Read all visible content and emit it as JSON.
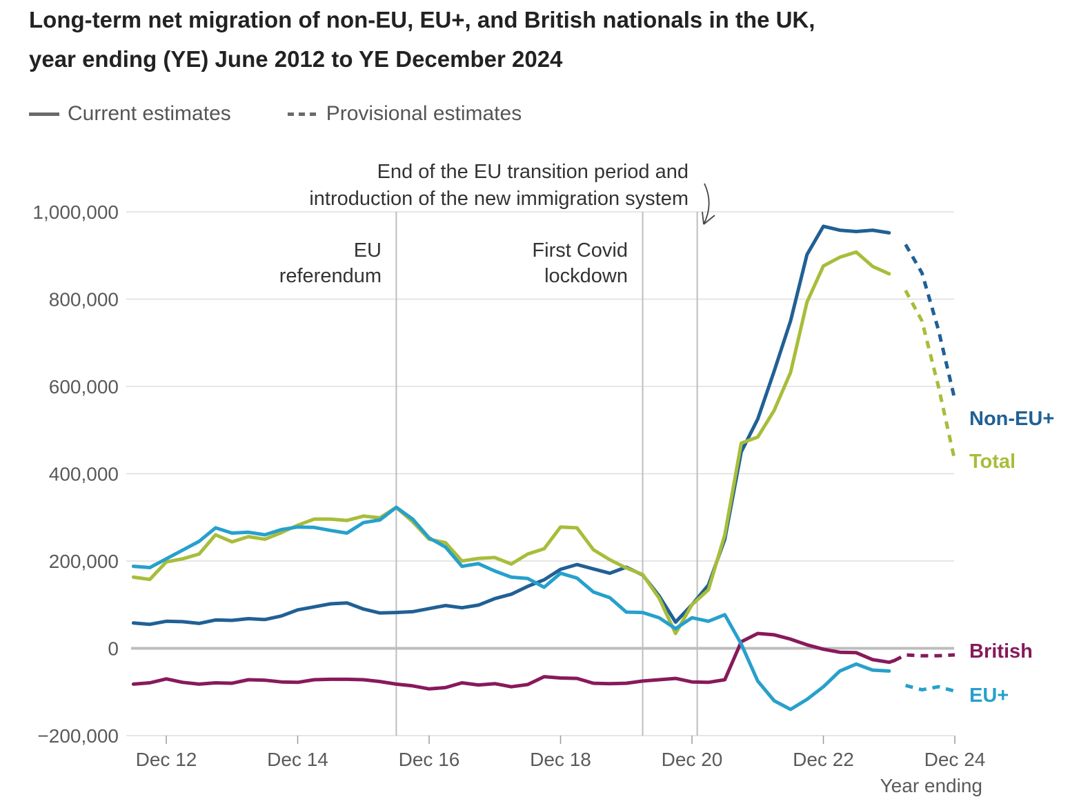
{
  "title_line1": "Long-term net migration of non-EU, EU+, and British nationals in the UK,",
  "title_line2": "year ending (YE) June 2012 to YE December 2024",
  "legend": {
    "current": "Current estimates",
    "provisional": "Provisional estimates"
  },
  "chart_data": {
    "type": "line",
    "title": "Long-term net migration of non-EU, EU+, and British nationals in the UK, year ending (YE) June 2012 to YE December 2024",
    "xlabel": "Year ending",
    "ylabel": "",
    "xlim": [
      2011.45,
      2024.0
    ],
    "ylim": [
      -200000,
      1000000
    ],
    "x_ticks": [
      {
        "x": 2012,
        "label": "Dec 12"
      },
      {
        "x": 2014,
        "label": "Dec 14"
      },
      {
        "x": 2016,
        "label": "Dec 16"
      },
      {
        "x": 2018,
        "label": "Dec 18"
      },
      {
        "x": 2020,
        "label": "Dec 20"
      },
      {
        "x": 2022,
        "label": "Dec 22"
      },
      {
        "x": 2024,
        "label": "Dec 24"
      }
    ],
    "y_ticks": [
      {
        "y": 1000000,
        "label": "1,000,000"
      },
      {
        "y": 800000,
        "label": "800,000"
      },
      {
        "y": 600000,
        "label": "600,000"
      },
      {
        "y": 400000,
        "label": "400,000"
      },
      {
        "y": 200000,
        "label": "200,000"
      },
      {
        "y": 0,
        "label": "0"
      },
      {
        "y": -200000,
        "label": "−200,000"
      }
    ],
    "grid": true,
    "colors": {
      "Non-EU+": "#206095",
      "Total": "#a8bd3a",
      "British": "#871a5b",
      "EU+": "#27a0cc",
      "reference": "#bdbdbd",
      "zero": "#bdbdbd"
    },
    "annotations": [
      {
        "x": 2015.5,
        "lines": [
          "EU",
          "referendum"
        ]
      },
      {
        "x": 2019.25,
        "lines": [
          "First Covid",
          "lockdown"
        ]
      },
      {
        "x": 2020.08,
        "lines": [
          "End of the EU transition period and",
          "introduction of the new immigration system"
        ]
      }
    ],
    "provisional_from_x": 2023.08,
    "series": [
      {
        "name": "Non-EU+",
        "label": "Non-EU+",
        "points": [
          [
            2011.5,
            58000
          ],
          [
            2011.75,
            55000
          ],
          [
            2012.0,
            62000
          ],
          [
            2012.25,
            61000
          ],
          [
            2012.5,
            57000
          ],
          [
            2012.75,
            65000
          ],
          [
            2013.0,
            64000
          ],
          [
            2013.25,
            68000
          ],
          [
            2013.5,
            66000
          ],
          [
            2013.75,
            74000
          ],
          [
            2014.0,
            88000
          ],
          [
            2014.25,
            95000
          ],
          [
            2014.5,
            102000
          ],
          [
            2014.75,
            104000
          ],
          [
            2015.0,
            90000
          ],
          [
            2015.25,
            81000
          ],
          [
            2015.5,
            82000
          ],
          [
            2015.75,
            84000
          ],
          [
            2016.0,
            91000
          ],
          [
            2016.25,
            98000
          ],
          [
            2016.5,
            93000
          ],
          [
            2016.75,
            99000
          ],
          [
            2017.0,
            114000
          ],
          [
            2017.25,
            124000
          ],
          [
            2017.5,
            142000
          ],
          [
            2017.75,
            157000
          ],
          [
            2018.0,
            181000
          ],
          [
            2018.25,
            192000
          ],
          [
            2018.5,
            182000
          ],
          [
            2018.75,
            172000
          ],
          [
            2019.0,
            186000
          ],
          [
            2019.25,
            168000
          ],
          [
            2019.5,
            120000
          ],
          [
            2019.75,
            60000
          ],
          [
            2020.0,
            100000
          ],
          [
            2020.25,
            145000
          ],
          [
            2020.5,
            250000
          ],
          [
            2020.75,
            450000
          ],
          [
            2021.0,
            525000
          ],
          [
            2021.25,
            635000
          ],
          [
            2021.5,
            750000
          ],
          [
            2021.75,
            902000
          ],
          [
            2022.0,
            967000
          ],
          [
            2022.25,
            958000
          ],
          [
            2022.5,
            955000
          ],
          [
            2022.75,
            958000
          ],
          [
            2023.0,
            952000
          ],
          [
            2023.25,
            925000
          ],
          [
            2023.5,
            860000
          ],
          [
            2023.75,
            730000
          ],
          [
            2024.0,
            570000
          ]
        ]
      },
      {
        "name": "Total",
        "label": "Total",
        "points": [
          [
            2011.5,
            163000
          ],
          [
            2011.75,
            158000
          ],
          [
            2012.0,
            198000
          ],
          [
            2012.25,
            205000
          ],
          [
            2012.5,
            216000
          ],
          [
            2012.75,
            260000
          ],
          [
            2013.0,
            244000
          ],
          [
            2013.25,
            256000
          ],
          [
            2013.5,
            250000
          ],
          [
            2013.75,
            265000
          ],
          [
            2014.0,
            282000
          ],
          [
            2014.25,
            296000
          ],
          [
            2014.5,
            296000
          ],
          [
            2014.75,
            293000
          ],
          [
            2015.0,
            303000
          ],
          [
            2015.25,
            299000
          ],
          [
            2015.5,
            323000
          ],
          [
            2015.75,
            290000
          ],
          [
            2016.0,
            250000
          ],
          [
            2016.25,
            242000
          ],
          [
            2016.5,
            200000
          ],
          [
            2016.75,
            206000
          ],
          [
            2017.0,
            208000
          ],
          [
            2017.25,
            193000
          ],
          [
            2017.5,
            216000
          ],
          [
            2017.75,
            228000
          ],
          [
            2018.0,
            278000
          ],
          [
            2018.25,
            276000
          ],
          [
            2018.5,
            226000
          ],
          [
            2018.75,
            203000
          ],
          [
            2019.0,
            184000
          ],
          [
            2019.25,
            169000
          ],
          [
            2019.5,
            115000
          ],
          [
            2019.75,
            34000
          ],
          [
            2020.0,
            100000
          ],
          [
            2020.25,
            134000
          ],
          [
            2020.5,
            260000
          ],
          [
            2020.75,
            470000
          ],
          [
            2021.0,
            484000
          ],
          [
            2021.25,
            545000
          ],
          [
            2021.5,
            632000
          ],
          [
            2021.75,
            793000
          ],
          [
            2022.0,
            876000
          ],
          [
            2022.25,
            896000
          ],
          [
            2022.5,
            908000
          ],
          [
            2022.75,
            875000
          ],
          [
            2023.0,
            858000
          ],
          [
            2023.25,
            820000
          ],
          [
            2023.5,
            750000
          ],
          [
            2023.75,
            600000
          ],
          [
            2024.0,
            430000
          ]
        ]
      },
      {
        "name": "British",
        "label": "British",
        "points": [
          [
            2011.5,
            -82000
          ],
          [
            2011.75,
            -79000
          ],
          [
            2012.0,
            -70000
          ],
          [
            2012.25,
            -78000
          ],
          [
            2012.5,
            -82000
          ],
          [
            2012.75,
            -79000
          ],
          [
            2013.0,
            -80000
          ],
          [
            2013.25,
            -72000
          ],
          [
            2013.5,
            -73000
          ],
          [
            2013.75,
            -77000
          ],
          [
            2014.0,
            -78000
          ],
          [
            2014.25,
            -72000
          ],
          [
            2014.5,
            -71000
          ],
          [
            2014.75,
            -71000
          ],
          [
            2015.0,
            -72000
          ],
          [
            2015.25,
            -76000
          ],
          [
            2015.5,
            -82000
          ],
          [
            2015.75,
            -86000
          ],
          [
            2016.0,
            -93000
          ],
          [
            2016.25,
            -90000
          ],
          [
            2016.5,
            -79000
          ],
          [
            2016.75,
            -84000
          ],
          [
            2017.0,
            -81000
          ],
          [
            2017.25,
            -88000
          ],
          [
            2017.5,
            -83000
          ],
          [
            2017.75,
            -65000
          ],
          [
            2018.0,
            -68000
          ],
          [
            2018.25,
            -69000
          ],
          [
            2018.5,
            -80000
          ],
          [
            2018.75,
            -81000
          ],
          [
            2019.0,
            -80000
          ],
          [
            2019.25,
            -75000
          ],
          [
            2019.5,
            -72000
          ],
          [
            2019.75,
            -69000
          ],
          [
            2020.0,
            -77000
          ],
          [
            2020.25,
            -78000
          ],
          [
            2020.5,
            -72000
          ],
          [
            2020.75,
            15000
          ],
          [
            2021.0,
            34000
          ],
          [
            2021.25,
            31000
          ],
          [
            2021.5,
            21000
          ],
          [
            2021.75,
            8000
          ],
          [
            2022.0,
            -2000
          ],
          [
            2022.25,
            -9000
          ],
          [
            2022.5,
            -10000
          ],
          [
            2022.75,
            -26000
          ],
          [
            2023.0,
            -32000
          ],
          [
            2023.08,
            -28000
          ],
          [
            2023.25,
            -15000
          ],
          [
            2023.5,
            -17000
          ],
          [
            2023.75,
            -17000
          ],
          [
            2024.0,
            -15000
          ]
        ]
      },
      {
        "name": "EU+",
        "label": "EU+",
        "points": [
          [
            2011.5,
            188000
          ],
          [
            2011.75,
            185000
          ],
          [
            2012.0,
            205000
          ],
          [
            2012.25,
            225000
          ],
          [
            2012.5,
            245000
          ],
          [
            2012.75,
            276000
          ],
          [
            2013.0,
            264000
          ],
          [
            2013.25,
            266000
          ],
          [
            2013.5,
            260000
          ],
          [
            2013.75,
            272000
          ],
          [
            2014.0,
            278000
          ],
          [
            2014.25,
            277000
          ],
          [
            2014.5,
            270000
          ],
          [
            2014.75,
            264000
          ],
          [
            2015.0,
            288000
          ],
          [
            2015.25,
            294000
          ],
          [
            2015.5,
            323000
          ],
          [
            2015.75,
            296000
          ],
          [
            2016.0,
            253000
          ],
          [
            2016.25,
            232000
          ],
          [
            2016.5,
            188000
          ],
          [
            2016.75,
            194000
          ],
          [
            2017.0,
            177000
          ],
          [
            2017.25,
            163000
          ],
          [
            2017.5,
            160000
          ],
          [
            2017.75,
            140000
          ],
          [
            2018.0,
            172000
          ],
          [
            2018.25,
            161000
          ],
          [
            2018.5,
            129000
          ],
          [
            2018.75,
            116000
          ],
          [
            2019.0,
            83000
          ],
          [
            2019.25,
            82000
          ],
          [
            2019.5,
            70000
          ],
          [
            2019.75,
            45000
          ],
          [
            2020.0,
            70000
          ],
          [
            2020.25,
            62000
          ],
          [
            2020.5,
            77000
          ],
          [
            2020.75,
            10000
          ],
          [
            2021.0,
            -75000
          ],
          [
            2021.25,
            -120000
          ],
          [
            2021.5,
            -140000
          ],
          [
            2021.75,
            -117000
          ],
          [
            2022.0,
            -88000
          ],
          [
            2022.25,
            -52000
          ],
          [
            2022.5,
            -36000
          ],
          [
            2022.75,
            -50000
          ],
          [
            2023.0,
            -52000
          ],
          [
            2023.25,
            -85000
          ],
          [
            2023.5,
            -95000
          ],
          [
            2023.75,
            -88000
          ],
          [
            2024.0,
            -98000
          ]
        ]
      }
    ]
  }
}
